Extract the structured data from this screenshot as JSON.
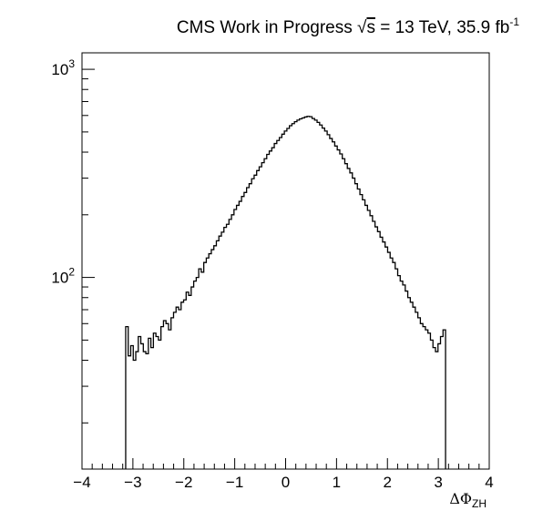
{
  "chart_data": {
    "type": "histogram",
    "title": {
      "prefix": "CMS Work in Progress ",
      "sqrt_symbol": "√",
      "sqrt_var": "s",
      "energy": " = 13 TeV, 35.9 fb",
      "lumi_exp": "-1"
    },
    "xlabel": {
      "main": "ΔΦ",
      "sub": "ZH"
    },
    "ylabel": "",
    "xlim": [
      -4,
      4
    ],
    "ylim": [
      12,
      1200
    ],
    "log_y": true,
    "grid": false,
    "x_ticks": [
      {
        "value": -4,
        "label": "−4"
      },
      {
        "value": -3,
        "label": "−3"
      },
      {
        "value": -2,
        "label": "−2"
      },
      {
        "value": -1,
        "label": "−1"
      },
      {
        "value": 0,
        "label": "0"
      },
      {
        "value": 1,
        "label": "1"
      },
      {
        "value": 2,
        "label": "2"
      },
      {
        "value": 3,
        "label": "3"
      },
      {
        "value": 4,
        "label": "4"
      }
    ],
    "y_ticks": [
      {
        "value": 100,
        "base": "10",
        "exp": "2"
      },
      {
        "value": 1000,
        "base": "10",
        "exp": "3"
      }
    ],
    "series": [
      {
        "bin_range": [
          -3.1416,
          3.1416
        ],
        "values": [
          58,
          42,
          47,
          40,
          44,
          52,
          48,
          44,
          43,
          51,
          46,
          54,
          52,
          50,
          58,
          62,
          60,
          56,
          64,
          68,
          72,
          70,
          76,
          78,
          85,
          82,
          90,
          96,
          100,
          110,
          106,
          118,
          124,
          130,
          136,
          142,
          150,
          158,
          165,
          174,
          180,
          190,
          200,
          212,
          222,
          232,
          245,
          256,
          270,
          282,
          298,
          310,
          326,
          340,
          356,
          372,
          390,
          405,
          420,
          440,
          455,
          470,
          488,
          505,
          520,
          536,
          548,
          560,
          570,
          578,
          584,
          590,
          594,
          592,
          580,
          570,
          556,
          540,
          522,
          505,
          485,
          465,
          448,
          428,
          410,
          392,
          372,
          352,
          334,
          318,
          300,
          282,
          266,
          250,
          236,
          222,
          210,
          198,
          186,
          175,
          166,
          156,
          148,
          140,
          132,
          124,
          118,
          110,
          102,
          96,
          92,
          86,
          80,
          76,
          72,
          68,
          64,
          60,
          58,
          56,
          54,
          50,
          46,
          44,
          48,
          52,
          56
        ]
      }
    ]
  }
}
